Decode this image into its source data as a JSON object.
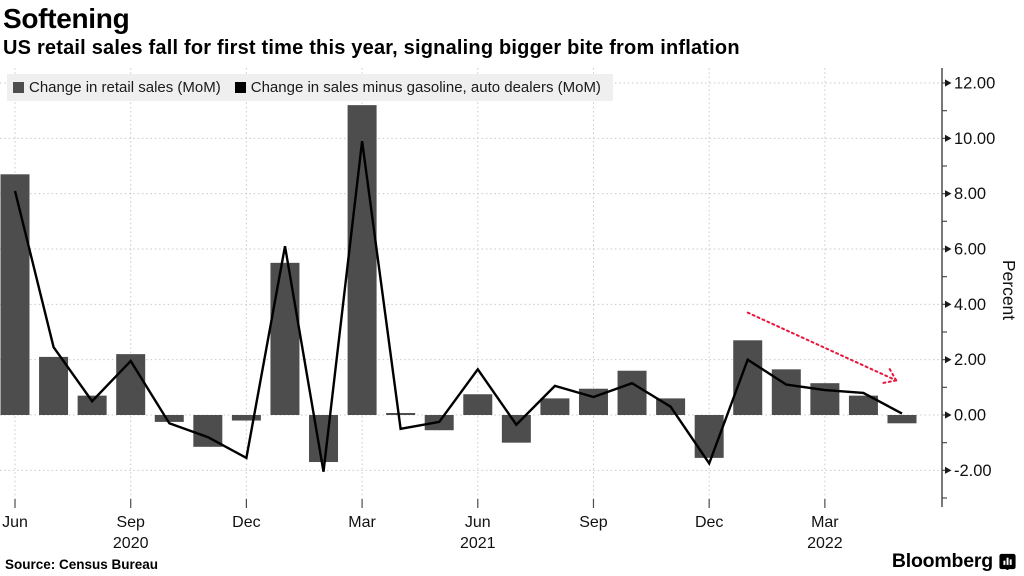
{
  "header": {
    "title": "Softening",
    "subtitle": "US retail sales fall for first time this year, signaling bigger bite from inflation"
  },
  "legend": [
    {
      "label": "Change in retail sales (MoM)",
      "swatch_color": "#4d4d4d"
    },
    {
      "label": "Change in sales minus gasoline, auto dealers (MoM)",
      "swatch_color": "#000000"
    }
  ],
  "footer": {
    "source": "Source: Census Bureau",
    "brand": "Bloomberg"
  },
  "chart_data": {
    "type": "bar",
    "combo": "bar+line",
    "categories": [
      "Jun 2020",
      "Jul 2020",
      "Aug 2020",
      "Sep 2020",
      "Oct 2020",
      "Nov 2020",
      "Dec 2020",
      "Jan 2021",
      "Feb 2021",
      "Mar 2021",
      "Apr 2021",
      "May 2021",
      "Jun 2021",
      "Jul 2021",
      "Aug 2021",
      "Sep 2021",
      "Oct 2021",
      "Nov 2021",
      "Dec 2021",
      "Jan 2022",
      "Feb 2022",
      "Mar 2022",
      "Apr 2022",
      "May 2022"
    ],
    "series": [
      {
        "name": "Change in retail sales (MoM)",
        "type": "bar",
        "color": "#4d4d4d",
        "values": [
          8.7,
          2.1,
          0.7,
          2.2,
          -0.25,
          -1.15,
          -0.2,
          5.5,
          -1.7,
          11.2,
          0.05,
          -0.55,
          0.75,
          -1.0,
          0.6,
          0.95,
          1.6,
          0.6,
          -1.55,
          2.7,
          1.65,
          1.15,
          0.7,
          -0.3
        ]
      },
      {
        "name": "Change in sales minus gasoline, auto dealers (MoM)",
        "type": "line",
        "color": "#000000",
        "values": [
          8.1,
          2.45,
          0.5,
          1.95,
          -0.3,
          -0.8,
          -1.55,
          6.1,
          -2.05,
          9.9,
          -0.5,
          -0.25,
          1.65,
          -0.35,
          1.05,
          0.65,
          1.15,
          0.3,
          -1.75,
          2.0,
          1.1,
          0.9,
          0.8,
          0.05
        ]
      }
    ],
    "x_axis": {
      "ticks": [
        {
          "index": 0,
          "label": "Jun"
        },
        {
          "index": 3,
          "label": "Sep",
          "year": "2020"
        },
        {
          "index": 6,
          "label": "Dec"
        },
        {
          "index": 9,
          "label": "Mar"
        },
        {
          "index": 12,
          "label": "Jun",
          "year": "2021"
        },
        {
          "index": 15,
          "label": "Sep"
        },
        {
          "index": 18,
          "label": "Dec"
        },
        {
          "index": 21,
          "label": "Mar",
          "year": "2022"
        }
      ]
    },
    "y_axis": {
      "label": "Percent",
      "ticks": [
        12,
        10,
        8,
        6,
        4,
        2,
        0,
        -2
      ],
      "minor_ticks": [
        11,
        9,
        7,
        5,
        3,
        1,
        -1,
        -3
      ],
      "tick_format": "0.00"
    },
    "ylim": [
      -3.2,
      12.6
    ],
    "grid": true,
    "legend_position": "top-left",
    "annotation": {
      "type": "trend-arrow",
      "color": "#e8173d",
      "style": "dotted",
      "from": {
        "index": 19.0,
        "value": 3.7
      },
      "to": {
        "index": 22.85,
        "value": 1.25
      }
    }
  }
}
